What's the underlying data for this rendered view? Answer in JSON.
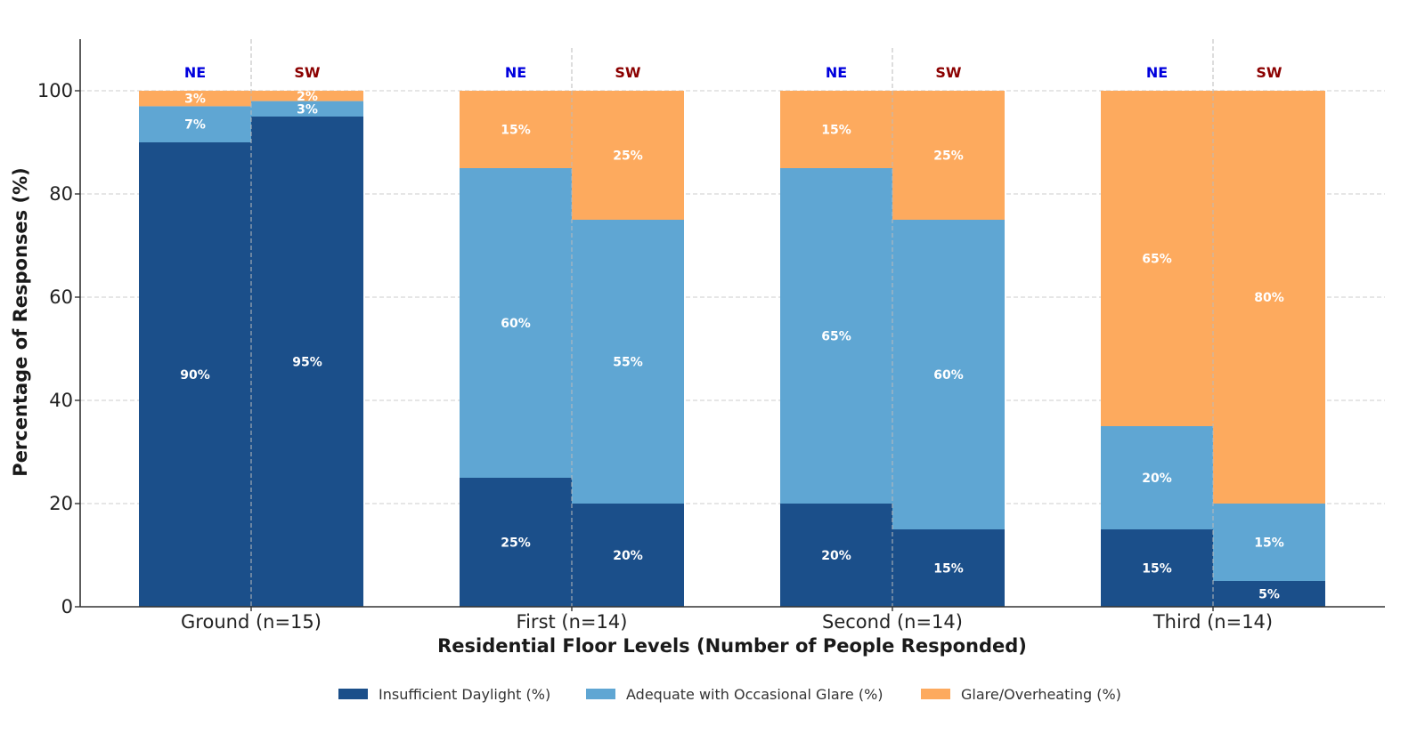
{
  "chart_data": {
    "type": "bar",
    "stacked": true,
    "title": "",
    "xlabel": "Residential Floor Levels (Number of People Responded)",
    "ylabel": "Percentage of Responses (%)",
    "ylim": [
      0,
      110
    ],
    "yticks": [
      0,
      20,
      40,
      60,
      80,
      100
    ],
    "grid": true,
    "legend_position": "bottom-center",
    "categories": [
      "Ground (n=15)",
      "First (n=14)",
      "Second (n=14)",
      "Third (n=14)"
    ],
    "orientations": [
      {
        "name": "NE",
        "color": "#0000dd"
      },
      {
        "name": "SW",
        "color": "#8b0000"
      }
    ],
    "series": [
      {
        "name": "Insufficient Daylight (%)",
        "color": "#1b4f8a",
        "values": {
          "NE": [
            90,
            25,
            20,
            15
          ],
          "SW": [
            95,
            20,
            15,
            5
          ]
        }
      },
      {
        "name": "Adequate with Occasional Glare (%)",
        "color": "#5fa6d3",
        "values": {
          "NE": [
            7,
            60,
            65,
            20
          ],
          "SW": [
            3,
            55,
            60,
            15
          ]
        }
      },
      {
        "name": "Glare/Overheating (%)",
        "color": "#fdaa5e",
        "values": {
          "NE": [
            3,
            15,
            15,
            65
          ],
          "SW": [
            2,
            25,
            25,
            80
          ]
        }
      }
    ]
  }
}
